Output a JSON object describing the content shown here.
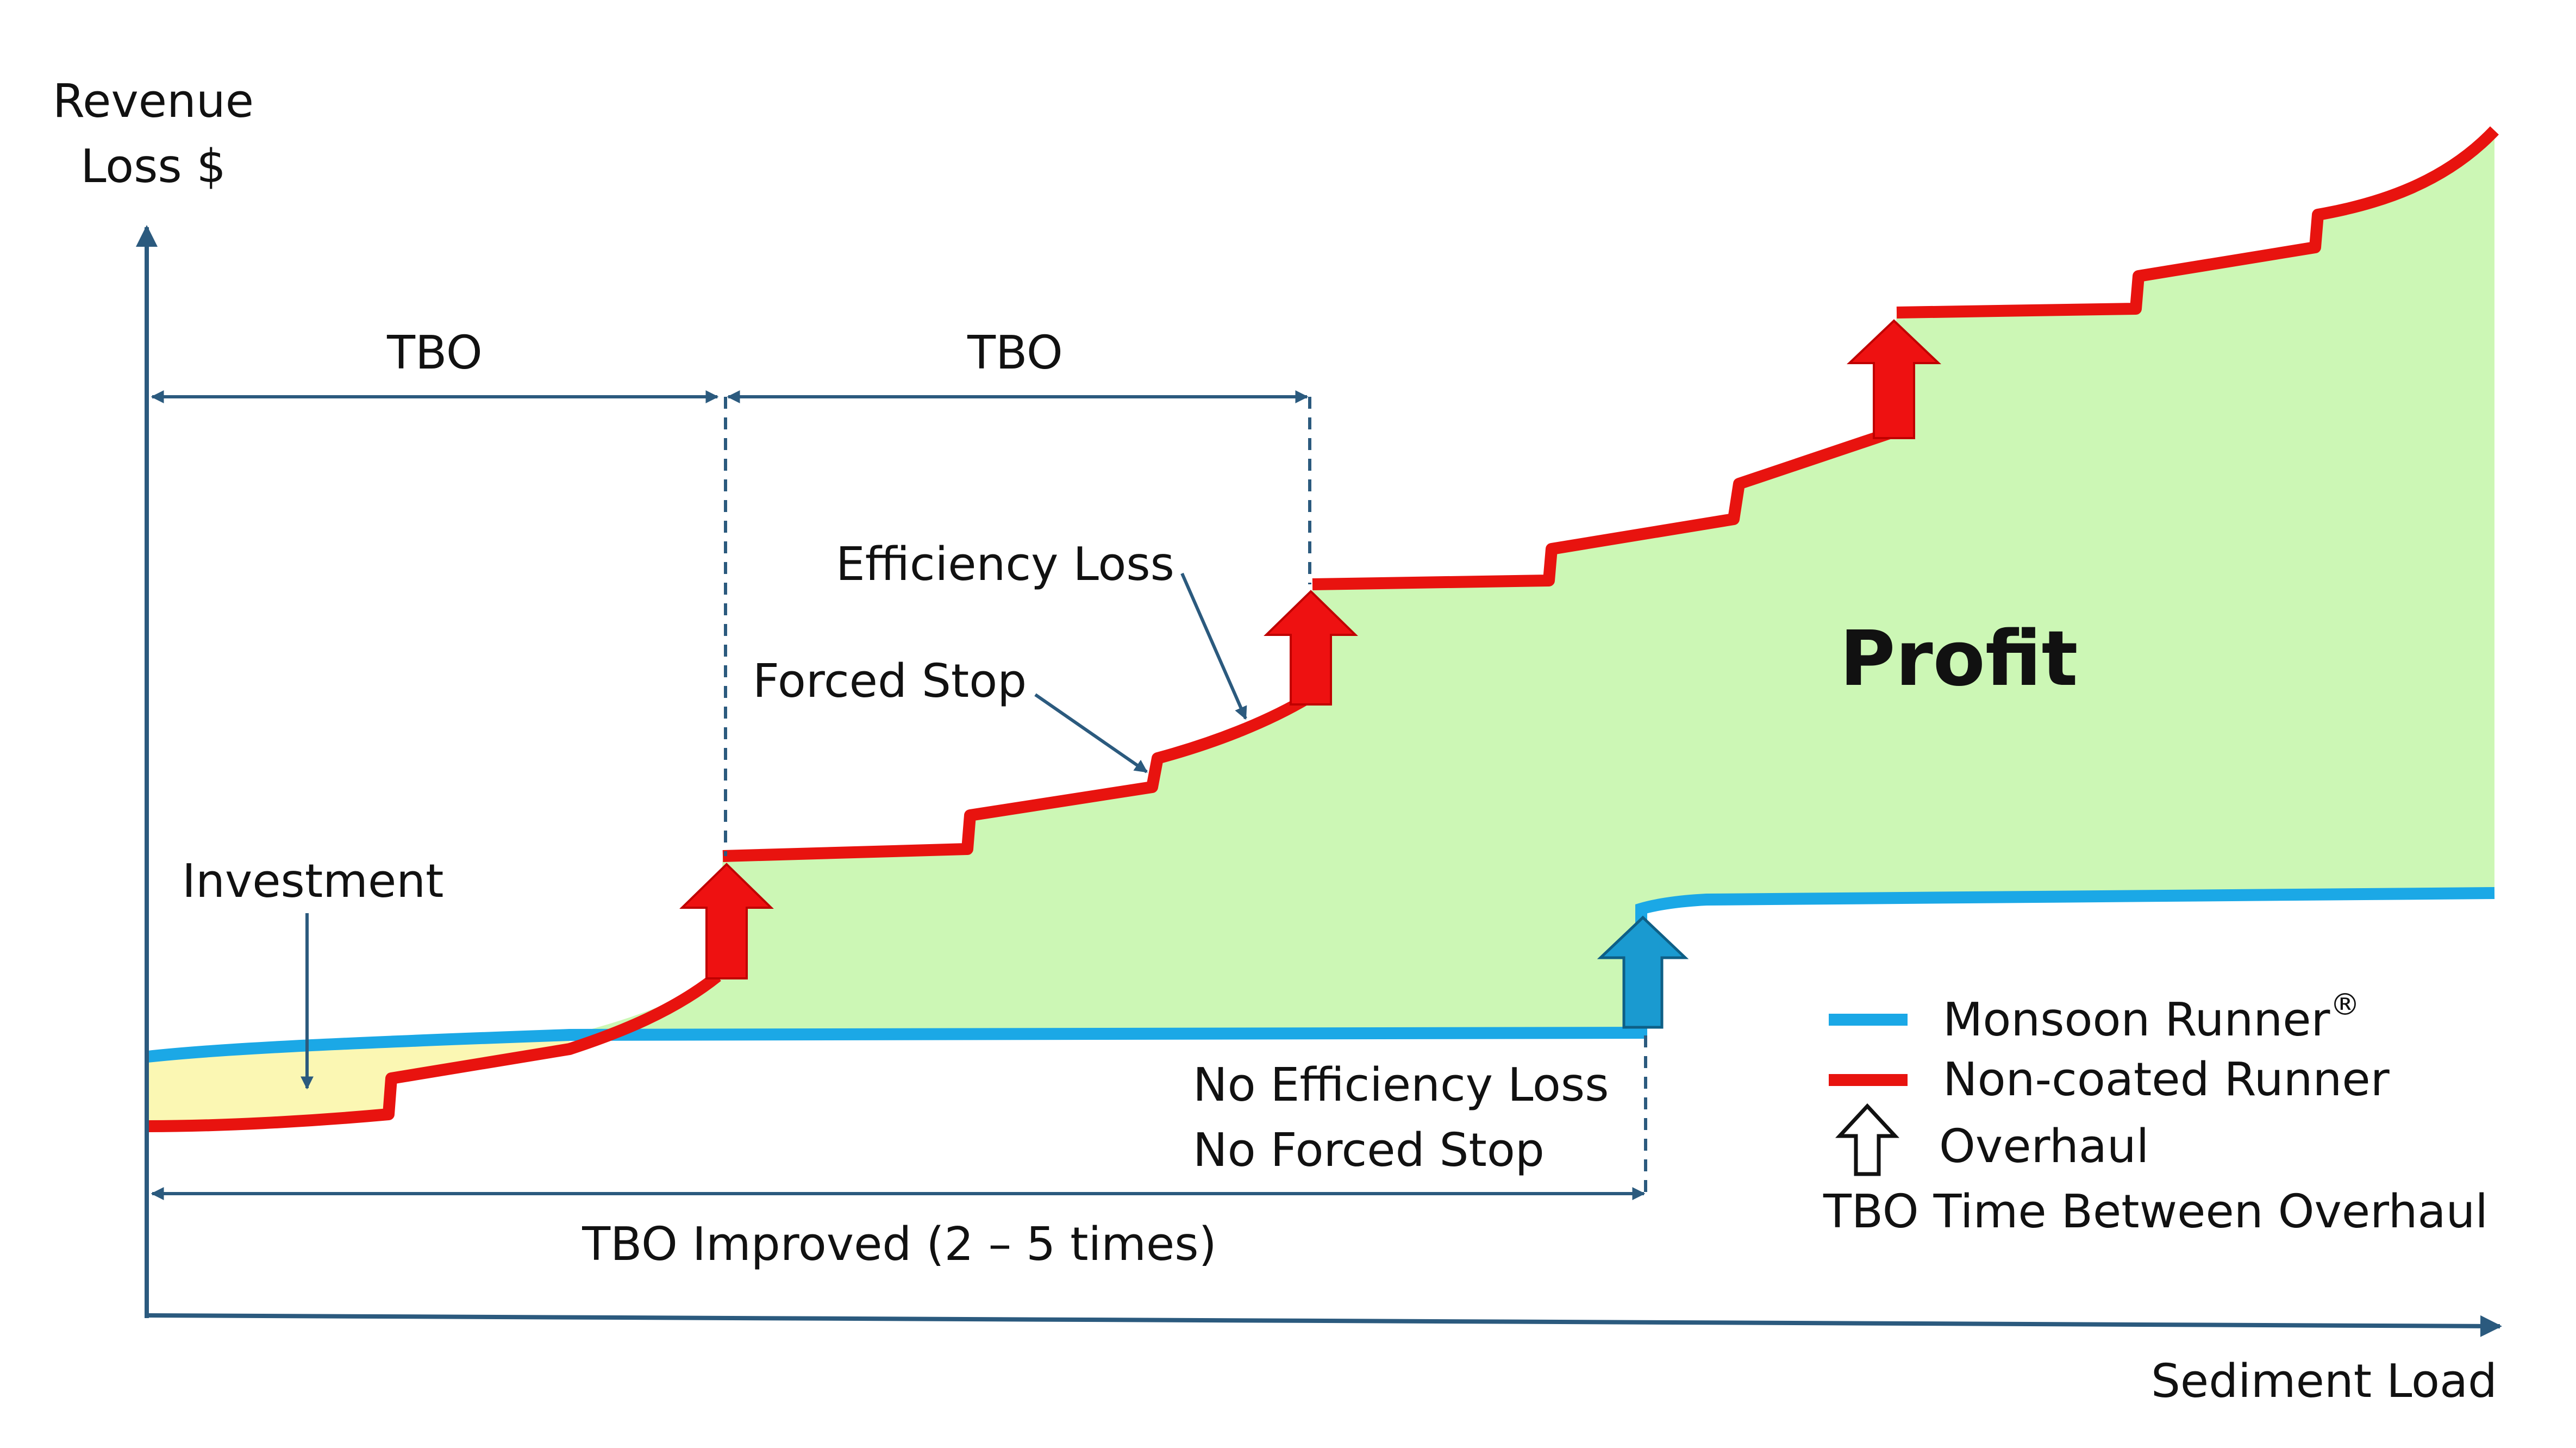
{
  "axes": {
    "y_label_line1": "Revenue",
    "y_label_line2": "Loss $",
    "x_label": "Sediment Load"
  },
  "intervals": {
    "tbo_first": "TBO",
    "tbo_second": "TBO",
    "tbo_improved": "TBO Improved (2 – 5 times)"
  },
  "annotations": {
    "efficiency_loss": "Efficiency Loss",
    "forced_stop": "Forced Stop",
    "investment": "Investment",
    "profit": "Profit",
    "no_efficiency_loss": "No Efficiency Loss",
    "no_forced_stop": "No Forced Stop"
  },
  "legend": {
    "monsoon_runner": "Monsoon Runner",
    "monsoon_runner_mark": "®",
    "non_coated_runner": "Non-coated Runner",
    "overhaul": "Overhaul",
    "tbo_definition": "TBO Time Between Overhaul"
  },
  "colors": {
    "monsoon_runner": "#1ba8e6",
    "non_coated_runner": "#e8130f",
    "profit_fill": "#ccf7b5",
    "investment_fill": "#fbf7b3",
    "overhaul_arrow_red": "#ee1111",
    "overhaul_arrow_blue": "#1a9ad0",
    "axis_and_dimension_lines": "#2b5a7e"
  },
  "icons": {
    "overhaul_legend": "up-arrow-outline-icon",
    "overhaul_marker": "up-arrow-icon",
    "callout_pointer": "arrow-pointer"
  }
}
